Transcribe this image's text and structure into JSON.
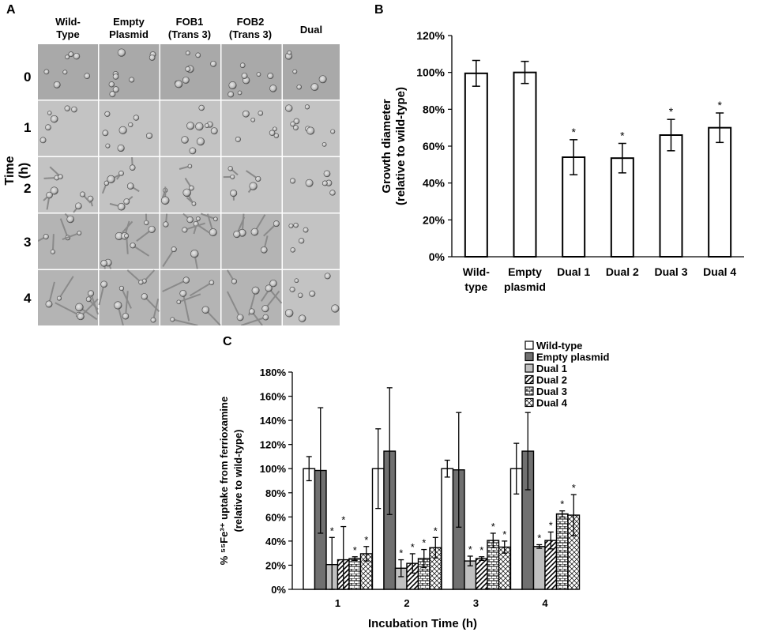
{
  "panel_a": {
    "letter": "A",
    "columns": [
      "Wild-\nType",
      "Empty\nPlasmid",
      "FOB1\n(Trans 3)",
      "FOB2\n(Trans 3)",
      "Dual"
    ],
    "rows": [
      "0",
      "1",
      "2",
      "3",
      "4"
    ],
    "row_axis_label": "Time (h)"
  },
  "panel_b": {
    "letter": "B"
  },
  "panel_c": {
    "letter": "C"
  },
  "chart_data": [
    {
      "type": "bar",
      "categories": [
        "Wild-\ntype",
        "Empty\nplasmid",
        "Dual 1",
        "Dual 2",
        "Dual 3",
        "Dual 4"
      ],
      "values": [
        99.5,
        100,
        54,
        53.5,
        66,
        70
      ],
      "errors": [
        7,
        6,
        9.5,
        8,
        8.5,
        8
      ],
      "significant": [
        false,
        false,
        true,
        true,
        true,
        true
      ],
      "ylabel": "Growth diameter\n(relative to wild-type)",
      "ylim": [
        0,
        120
      ],
      "yticks": [
        "0%",
        "20%",
        "40%",
        "60%",
        "80%",
        "100%",
        "120%"
      ],
      "grid": false
    },
    {
      "type": "bar",
      "categories": [
        "1",
        "2",
        "3",
        "4"
      ],
      "xlabel": "Incubation Time (h)",
      "ylabel_line1": "% ⁵⁵Fe³⁺ uptake from ferrioxamine",
      "ylabel_line2": "(relative to wild-type)",
      "ylim": [
        0,
        180
      ],
      "yticks": [
        "0%",
        "20%",
        "40%",
        "60%",
        "80%",
        "100%",
        "120%",
        "140%",
        "160%",
        "180%"
      ],
      "legend_position": "top-right",
      "series": [
        {
          "name": "Wild-type",
          "fill": "#ffffff",
          "pattern": "none",
          "values": [
            100,
            100,
            100,
            100
          ],
          "errors": [
            10,
            33,
            7,
            21
          ],
          "significant": [
            false,
            false,
            false,
            false
          ]
        },
        {
          "name": "Empty plasmid",
          "fill": "#707070",
          "pattern": "none",
          "values": [
            98.5,
            114.5,
            99,
            114.5
          ],
          "errors": [
            52,
            52.5,
            47.5,
            32
          ],
          "significant": [
            false,
            false,
            false,
            false
          ]
        },
        {
          "name": "Dual 1",
          "fill": "#c0c0c0",
          "pattern": "none",
          "values": [
            20.5,
            17.5,
            23.5,
            35.5
          ],
          "errors": [
            22.5,
            7,
            4,
            1.5
          ],
          "significant": [
            true,
            true,
            true,
            true
          ]
        },
        {
          "name": "Dual 2",
          "fill": "#ffffff",
          "pattern": "diag",
          "values": [
            24.5,
            21.5,
            25.5,
            40.5
          ],
          "errors": [
            27.5,
            8,
            1.5,
            7
          ],
          "significant": [
            true,
            true,
            true,
            true
          ]
        },
        {
          "name": "Dual 3",
          "fill": "#ffffff",
          "pattern": "brick",
          "values": [
            25.5,
            25.5,
            40.5,
            62.5
          ],
          "errors": [
            1.5,
            7.5,
            6,
            2.5
          ],
          "significant": [
            true,
            true,
            true,
            true
          ]
        },
        {
          "name": "Dual 4",
          "fill": "#ffffff",
          "pattern": "cross",
          "values": [
            29.5,
            34.5,
            35,
            61.5
          ],
          "errors": [
            6,
            8.5,
            5,
            17
          ],
          "significant": [
            true,
            true,
            true,
            true
          ]
        }
      ],
      "significance_mark": "*"
    }
  ]
}
